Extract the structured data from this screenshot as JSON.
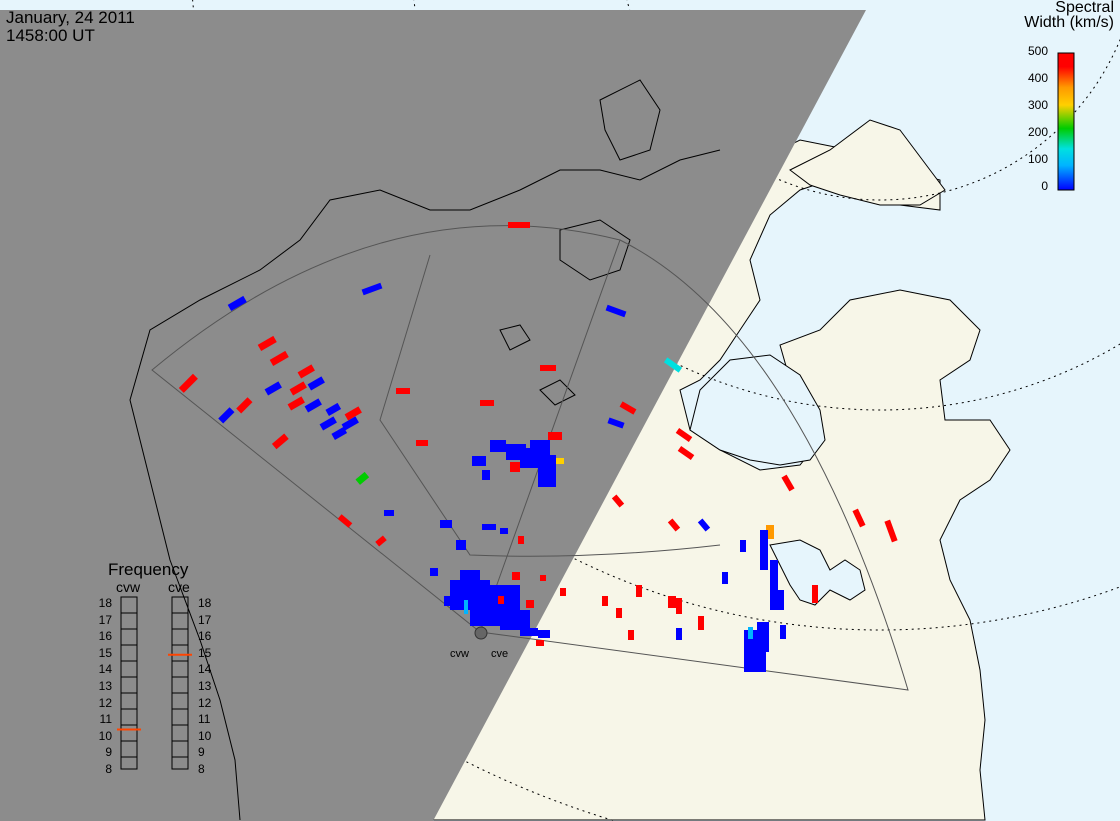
{
  "header": {
    "date": "January, 24 2011",
    "time": "1458:00 UT"
  },
  "colorbar": {
    "title_line1": "Spectral",
    "title_line2": "Width (km/s)",
    "ticks": [
      "500",
      "400",
      "300",
      "200",
      "100",
      "0"
    ],
    "colors": [
      "#0000ff",
      "#00b4ff",
      "#00e0e0",
      "#00cc00",
      "#ffd000",
      "#ff9900",
      "#ff0000"
    ]
  },
  "frequency_panel": {
    "title": "Frequency",
    "left_radar": "cvw",
    "right_radar": "cve",
    "values": [
      "18",
      "17",
      "16",
      "15",
      "14",
      "13",
      "12",
      "11",
      "10",
      "9",
      "8"
    ],
    "cvw_marker": 10.5,
    "cve_marker": 15,
    "marker_color": "#ff4400"
  },
  "map": {
    "night_color": "#8c8c8c",
    "land_color": "#f7f6e8",
    "ocean_color": "#e6f5fc",
    "sites": [
      {
        "code": "cvw"
      },
      {
        "code": "cve"
      }
    ]
  }
}
